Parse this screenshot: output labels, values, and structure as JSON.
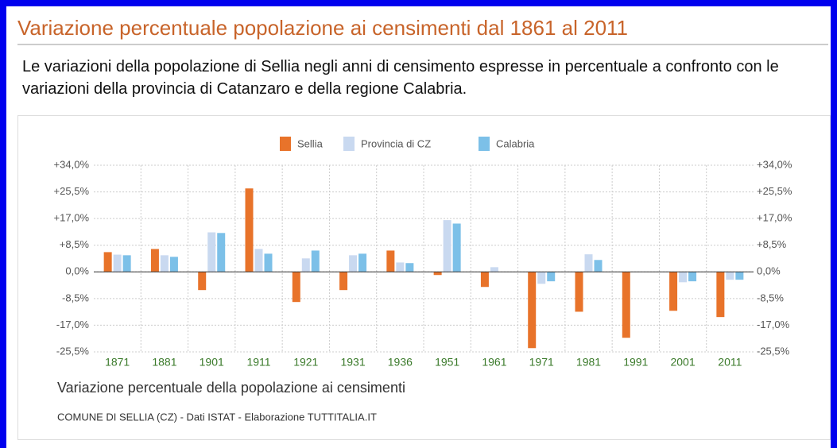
{
  "header": {
    "title": "Variazione percentuale popolazione ai censimenti dal 1861 al 2011",
    "description": "Le variazioni della popolazione di Sellia negli anni di censimento espresse in percentuale a confronto con le variazioni della provincia di Catanzaro e della regione Calabria."
  },
  "chart_data": {
    "type": "bar",
    "caption": "Variazione percentuale della popolazione ai censimenti",
    "source": "COMUNE DI SELLIA (CZ) - Dati ISTAT - Elaborazione TUTTITALIA.IT",
    "categories": [
      "1871",
      "1881",
      "1901",
      "1911",
      "1921",
      "1931",
      "1936",
      "1951",
      "1961",
      "1971",
      "1981",
      "1991",
      "2001",
      "2011"
    ],
    "series": [
      {
        "name": "Sellia",
        "color": "#e8732a",
        "values": [
          6.3,
          7.3,
          -5.8,
          26.6,
          -9.6,
          -5.8,
          6.8,
          -1.0,
          -4.8,
          -24.3,
          -12.7,
          -21.0,
          -12.4,
          -14.4
        ]
      },
      {
        "name": "Provincia di CZ",
        "color": "#c9d9f0",
        "values": [
          5.5,
          5.3,
          12.6,
          7.3,
          4.3,
          5.3,
          3.0,
          16.5,
          1.5,
          -3.8,
          5.6,
          0,
          -3.3,
          -2.5
        ]
      },
      {
        "name": "Calabria",
        "color": "#7cc0e8",
        "values": [
          5.3,
          4.8,
          12.4,
          5.8,
          6.8,
          5.8,
          2.8,
          15.4,
          0,
          -3.0,
          3.8,
          0,
          -3.0,
          -2.5
        ]
      }
    ],
    "ylim": [
      -25.5,
      34
    ],
    "yticks": [
      {
        "value": 34,
        "label": "+34,0%"
      },
      {
        "value": 25.5,
        "label": "+25,5%"
      },
      {
        "value": 17,
        "label": "+17,0%"
      },
      {
        "value": 8.5,
        "label": "+8,5%"
      },
      {
        "value": 0,
        "label": "0,0%"
      },
      {
        "value": -8.5,
        "label": "-8,5%"
      },
      {
        "value": -17,
        "label": "-17,0%"
      },
      {
        "value": -25.5,
        "label": "-25,5%"
      }
    ],
    "grid": true
  }
}
